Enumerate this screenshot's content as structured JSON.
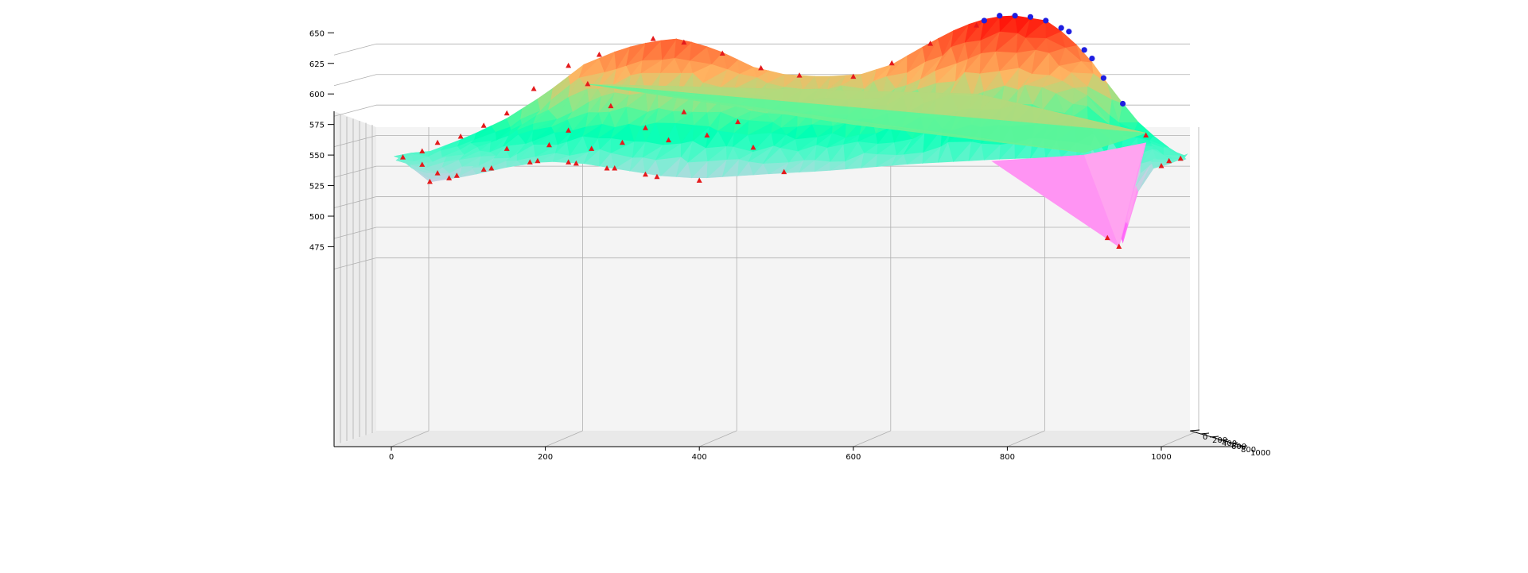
{
  "chart_data": {
    "type": "surface3d",
    "title": "",
    "xlabel": "",
    "ylabel": "",
    "zlabel": "",
    "grid": true,
    "colormap": "rainbow",
    "x_ticks": [
      0,
      200,
      400,
      600,
      800,
      1000
    ],
    "y_ticks": [
      "0",
      "200",
      "400",
      "600",
      "800",
      "1000"
    ],
    "z_ticks": [
      475,
      500,
      525,
      550,
      575,
      600,
      625,
      650
    ],
    "xlim": [
      -75,
      1050
    ],
    "zlim": [
      455,
      678
    ],
    "ridge": [
      [
        10,
        548
      ],
      [
        50,
        553
      ],
      [
        100,
        565
      ],
      [
        150,
        580
      ],
      [
        200,
        600
      ],
      [
        250,
        624
      ],
      [
        300,
        637
      ],
      [
        340,
        643
      ],
      [
        370,
        645
      ],
      [
        400,
        641
      ],
      [
        430,
        634
      ],
      [
        470,
        622
      ],
      [
        510,
        616
      ],
      [
        560,
        614
      ],
      [
        610,
        616
      ],
      [
        650,
        624
      ],
      [
        700,
        642
      ],
      [
        740,
        655
      ],
      [
        780,
        663
      ],
      [
        810,
        664
      ],
      [
        850,
        660
      ],
      [
        880,
        647
      ],
      [
        910,
        626
      ],
      [
        940,
        600
      ],
      [
        970,
        577
      ],
      [
        1000,
        560
      ],
      [
        1030,
        548
      ]
    ],
    "base": [
      [
        10,
        548
      ],
      [
        50,
        528
      ],
      [
        100,
        533
      ],
      [
        150,
        540
      ],
      [
        200,
        545
      ],
      [
        250,
        543
      ],
      [
        300,
        538
      ],
      [
        350,
        533
      ],
      [
        400,
        531
      ],
      [
        450,
        533
      ],
      [
        500,
        535
      ],
      [
        560,
        537
      ],
      [
        620,
        540
      ],
      [
        680,
        543
      ],
      [
        740,
        545
      ],
      [
        800,
        547
      ],
      [
        860,
        548
      ],
      [
        910,
        549
      ],
      [
        940,
        498
      ],
      [
        945,
        475
      ],
      [
        960,
        485
      ],
      [
        975,
        538
      ],
      [
        1000,
        540
      ],
      [
        1030,
        548
      ]
    ],
    "outlier_point": [
      255,
      608
    ],
    "dip_point": [
      945,
      475
    ],
    "high_points": [
      [
        770,
        660
      ],
      [
        790,
        664
      ],
      [
        810,
        664
      ],
      [
        830,
        663
      ],
      [
        850,
        660
      ],
      [
        870,
        654
      ],
      [
        880,
        651
      ],
      [
        900,
        636
      ],
      [
        910,
        629
      ],
      [
        925,
        613
      ],
      [
        950,
        592
      ]
    ],
    "low_points": [
      [
        15,
        548
      ],
      [
        40,
        542
      ],
      [
        50,
        528
      ],
      [
        60,
        535
      ],
      [
        75,
        531
      ],
      [
        85,
        533
      ],
      [
        120,
        538
      ],
      [
        130,
        539
      ],
      [
        180,
        544
      ],
      [
        190,
        545
      ],
      [
        230,
        544
      ],
      [
        240,
        543
      ],
      [
        280,
        539
      ],
      [
        290,
        539
      ],
      [
        330,
        534
      ],
      [
        345,
        532
      ],
      [
        400,
        529
      ],
      [
        510,
        536
      ],
      [
        930,
        482
      ],
      [
        1000,
        541
      ],
      [
        1010,
        545
      ],
      [
        1025,
        547
      ]
    ],
    "ridge_points": [
      [
        40,
        553
      ],
      [
        60,
        560
      ],
      [
        90,
        565
      ],
      [
        120,
        574
      ],
      [
        150,
        584
      ],
      [
        185,
        604
      ],
      [
        230,
        623
      ],
      [
        270,
        632
      ],
      [
        340,
        645
      ],
      [
        380,
        642
      ],
      [
        430,
        633
      ],
      [
        480,
        621
      ],
      [
        530,
        615
      ],
      [
        600,
        614
      ],
      [
        650,
        625
      ],
      [
        700,
        641
      ],
      [
        760,
        656
      ],
      [
        980,
        566
      ]
    ],
    "interior_points": [
      [
        150,
        555
      ],
      [
        205,
        558
      ],
      [
        230,
        570
      ],
      [
        260,
        555
      ],
      [
        285,
        590
      ],
      [
        300,
        560
      ],
      [
        330,
        572
      ],
      [
        360,
        562
      ],
      [
        380,
        585
      ],
      [
        410,
        566
      ],
      [
        450,
        577
      ],
      [
        470,
        556
      ]
    ]
  }
}
